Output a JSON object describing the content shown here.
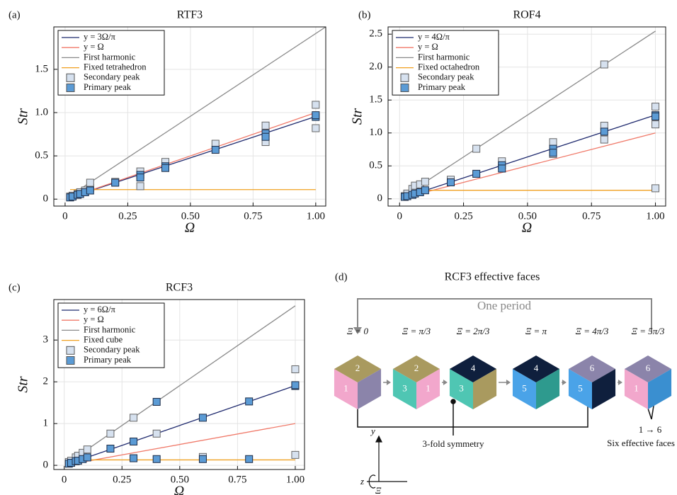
{
  "chart_data": [
    {
      "type": "scatter",
      "panel_label": "(a)",
      "title": "RTF3",
      "xlabel": "Ω",
      "ylabel": "Str",
      "xlim": [
        -0.045,
        1.04
      ],
      "ylim": [
        -0.08,
        1.99
      ],
      "xticks": [
        0,
        0.25,
        {
          "value": 0.5,
          "label": "0.50"
        },
        0.75,
        {
          "value": 1,
          "label": "1.00"
        }
      ],
      "yticks": [
        0,
        0.5,
        {
          "value": 1,
          "label": "1.0"
        },
        1.5
      ],
      "grid": true,
      "legend": "top-left",
      "series": [
        {
          "name": "y = 3Ω/π",
          "color": "#1f2a6e",
          "x": [
            0.02,
            1
          ],
          "values": [
            0.019,
            0.955
          ]
        },
        {
          "name": "y = Ω",
          "color": "#f07a6a",
          "x": [
            0.02,
            1
          ],
          "values": [
            0.02,
            1
          ]
        },
        {
          "name": "First harmonic",
          "color": "#8a8a8a",
          "x": [
            0.02,
            1.04
          ],
          "values": [
            0.04,
            1.99
          ]
        },
        {
          "name": "Fixed tetrahedron",
          "color": "#f0a020",
          "x": [
            0.02,
            1
          ],
          "values": [
            0.11,
            0.11
          ]
        },
        {
          "name": "Secondary peak",
          "color": "#d6e1ef",
          "marker": "square",
          "x": [
            0.02,
            0.03,
            0.05,
            0.06,
            0.08,
            0.1,
            0.1,
            0.2,
            0.3,
            0.3,
            0.4,
            0.6,
            0.8,
            0.8,
            1,
            1
          ],
          "values": [
            0.03,
            0.04,
            0.06,
            0.08,
            0.1,
            0.13,
            0.19,
            0.2,
            0.32,
            0.15,
            0.43,
            0.64,
            0.85,
            0.66,
            1.09,
            0.82
          ]
        },
        {
          "name": "Primary peak",
          "color": "#5b9bd5",
          "marker": "square",
          "x": [
            0.02,
            0.03,
            0.05,
            0.06,
            0.08,
            0.1,
            0.2,
            0.3,
            0.3,
            0.4,
            0.4,
            0.6,
            0.8,
            0.8,
            1,
            1
          ],
          "values": [
            0.02,
            0.03,
            0.05,
            0.06,
            0.08,
            0.1,
            0.19,
            0.28,
            0.25,
            0.38,
            0.36,
            0.57,
            0.76,
            0.72,
            0.95,
            0.97
          ]
        }
      ]
    },
    {
      "type": "scatter",
      "panel_label": "(b)",
      "title": "ROF4",
      "xlabel": "Ω",
      "ylabel": "Str",
      "xlim": [
        -0.045,
        1.04
      ],
      "ylim": [
        -0.11,
        2.61
      ],
      "xticks": [
        0,
        0.25,
        {
          "value": 0.5,
          "label": "0.50"
        },
        0.75,
        {
          "value": 1,
          "label": "1.00"
        }
      ],
      "yticks": [
        0,
        0.5,
        {
          "value": 1,
          "label": "1.0"
        },
        1.5,
        {
          "value": 2,
          "label": "2.0"
        },
        2.5
      ],
      "grid": true,
      "legend": "top-left",
      "series": [
        {
          "name": "y = 4Ω/π",
          "color": "#1f2a6e",
          "x": [
            0.02,
            1
          ],
          "values": [
            0.025,
            1.273
          ]
        },
        {
          "name": "y = Ω",
          "color": "#f07a6a",
          "x": [
            0.02,
            1
          ],
          "values": [
            0.02,
            1
          ]
        },
        {
          "name": "First harmonic",
          "color": "#8a8a8a",
          "x": [
            0.02,
            1
          ],
          "values": [
            0.05,
            2.546
          ]
        },
        {
          "name": "Fixed octahedron",
          "color": "#f0a020",
          "x": [
            0.02,
            1
          ],
          "values": [
            0.13,
            0.13
          ]
        },
        {
          "name": "Secondary peak",
          "color": "#d6e1ef",
          "marker": "square",
          "x": [
            0.02,
            0.03,
            0.05,
            0.06,
            0.08,
            0.1,
            0.2,
            0.3,
            0.4,
            0.6,
            0.6,
            0.8,
            0.8,
            0.8,
            1,
            1,
            1
          ],
          "values": [
            0.04,
            0.08,
            0.15,
            0.2,
            0.22,
            0.26,
            0.29,
            0.76,
            0.57,
            0.86,
            0.68,
            2.04,
            1.11,
            0.9,
            1.4,
            1.13,
            0.16
          ]
        },
        {
          "name": "Primary peak",
          "color": "#5b9bd5",
          "marker": "square",
          "x": [
            0.02,
            0.03,
            0.05,
            0.06,
            0.08,
            0.1,
            0.2,
            0.3,
            0.4,
            0.4,
            0.6,
            0.6,
            0.8,
            1,
            1
          ],
          "values": [
            0.03,
            0.04,
            0.06,
            0.08,
            0.1,
            0.13,
            0.25,
            0.38,
            0.51,
            0.46,
            0.76,
            0.7,
            1.02,
            1.27,
            1.25
          ]
        }
      ]
    },
    {
      "type": "scatter",
      "panel_label": "(c)",
      "title": "RCF3",
      "xlabel": "Ω",
      "ylabel": "Str",
      "xlim": [
        -0.045,
        1.04
      ],
      "ylim": [
        -0.1,
        3.97
      ],
      "xticks": [
        0,
        0.25,
        {
          "value": 0.5,
          "label": "0.50"
        },
        0.75,
        {
          "value": 1,
          "label": "1.00"
        }
      ],
      "yticks": [
        0,
        1,
        2,
        3
      ],
      "grid": true,
      "legend": "top-left",
      "series": [
        {
          "name": "y = 6Ω/π",
          "color": "#1f2a6e",
          "x": [
            0.02,
            1
          ],
          "values": [
            0.038,
            1.91
          ]
        },
        {
          "name": "y = Ω",
          "color": "#f07a6a",
          "x": [
            0.02,
            1
          ],
          "values": [
            0.02,
            1
          ]
        },
        {
          "name": "First harmonic",
          "color": "#8a8a8a",
          "x": [
            0.02,
            1
          ],
          "values": [
            0.076,
            3.82
          ]
        },
        {
          "name": "Fixed cube",
          "color": "#f0a020",
          "x": [
            0.02,
            1
          ],
          "values": [
            0.13,
            0.13
          ]
        },
        {
          "name": "Secondary peak",
          "color": "#d6e1ef",
          "marker": "square",
          "x": [
            0.02,
            0.03,
            0.05,
            0.06,
            0.08,
            0.1,
            0.2,
            0.3,
            0.4,
            0.6,
            1,
            1
          ],
          "values": [
            0.08,
            0.11,
            0.19,
            0.23,
            0.3,
            0.38,
            0.76,
            1.14,
            0.76,
            0.2,
            2.3,
            0.25
          ]
        },
        {
          "name": "Primary peak",
          "color": "#5b9bd5",
          "marker": "square",
          "x": [
            0.02,
            0.03,
            0.05,
            0.06,
            0.08,
            0.1,
            0.2,
            0.3,
            0.3,
            0.4,
            0.4,
            0.6,
            0.6,
            0.8,
            0.8,
            1,
            1
          ],
          "values": [
            0.04,
            0.06,
            0.1,
            0.11,
            0.15,
            0.19,
            0.4,
            0.57,
            0.17,
            1.52,
            0.15,
            1.14,
            0.15,
            1.53,
            0.15,
            1.9,
            1.92
          ]
        }
      ]
    }
  ],
  "diagram": {
    "panel_label": "(d)",
    "title": "RCF3 effective faces",
    "period_label": "One period",
    "cubes": [
      {
        "phase": "Ξ = 0",
        "faces": [
          "1",
          "2"
        ]
      },
      {
        "phase": "Ξ = π/3",
        "faces": [
          "3",
          "2",
          "1"
        ]
      },
      {
        "phase": "Ξ = 2π/3",
        "faces": [
          "3",
          "4"
        ]
      },
      {
        "phase": "Ξ = π",
        "faces": [
          "5",
          "4"
        ]
      },
      {
        "phase": "Ξ = 4π/3",
        "faces": [
          "5",
          "6"
        ]
      },
      {
        "phase": "Ξ = 5π/3",
        "faces": [
          "1",
          "6"
        ]
      }
    ],
    "symmetry_label": "3-fold symmetry",
    "mapping_label": "1 → 6",
    "faces_label": "Six effective faces",
    "axes": {
      "y": "y",
      "z": "z",
      "rotation": "Ξ"
    }
  }
}
